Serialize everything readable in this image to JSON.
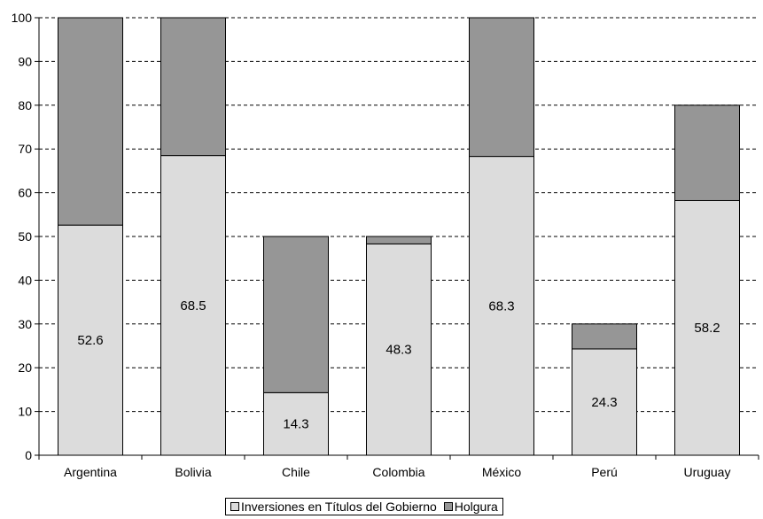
{
  "chart_data": {
    "type": "bar",
    "stacked": true,
    "categories": [
      "Argentina",
      "Bolivia",
      "Chile",
      "Colombia",
      "México",
      "Perú",
      "Uruguay"
    ],
    "series": [
      {
        "name": "Inversiones en Títulos del Gobierno",
        "values": [
          52.6,
          68.5,
          14.3,
          48.3,
          68.3,
          24.3,
          58.2
        ],
        "color": "#dcdcdc"
      },
      {
        "name": "Holgura",
        "values": [
          47.4,
          31.5,
          35.7,
          1.7,
          31.7,
          5.7,
          21.8
        ],
        "color": "#969696"
      }
    ],
    "data_labels": [
      "52.6",
      "68.5",
      "14.3",
      "48.3",
      "68.3",
      "24.3",
      "58.2"
    ],
    "ylim": [
      0,
      100
    ],
    "yticks": [
      0,
      10,
      20,
      30,
      40,
      50,
      60,
      70,
      80,
      90,
      100
    ],
    "grid": "horizontal dashed",
    "legend_position": "bottom-center"
  }
}
